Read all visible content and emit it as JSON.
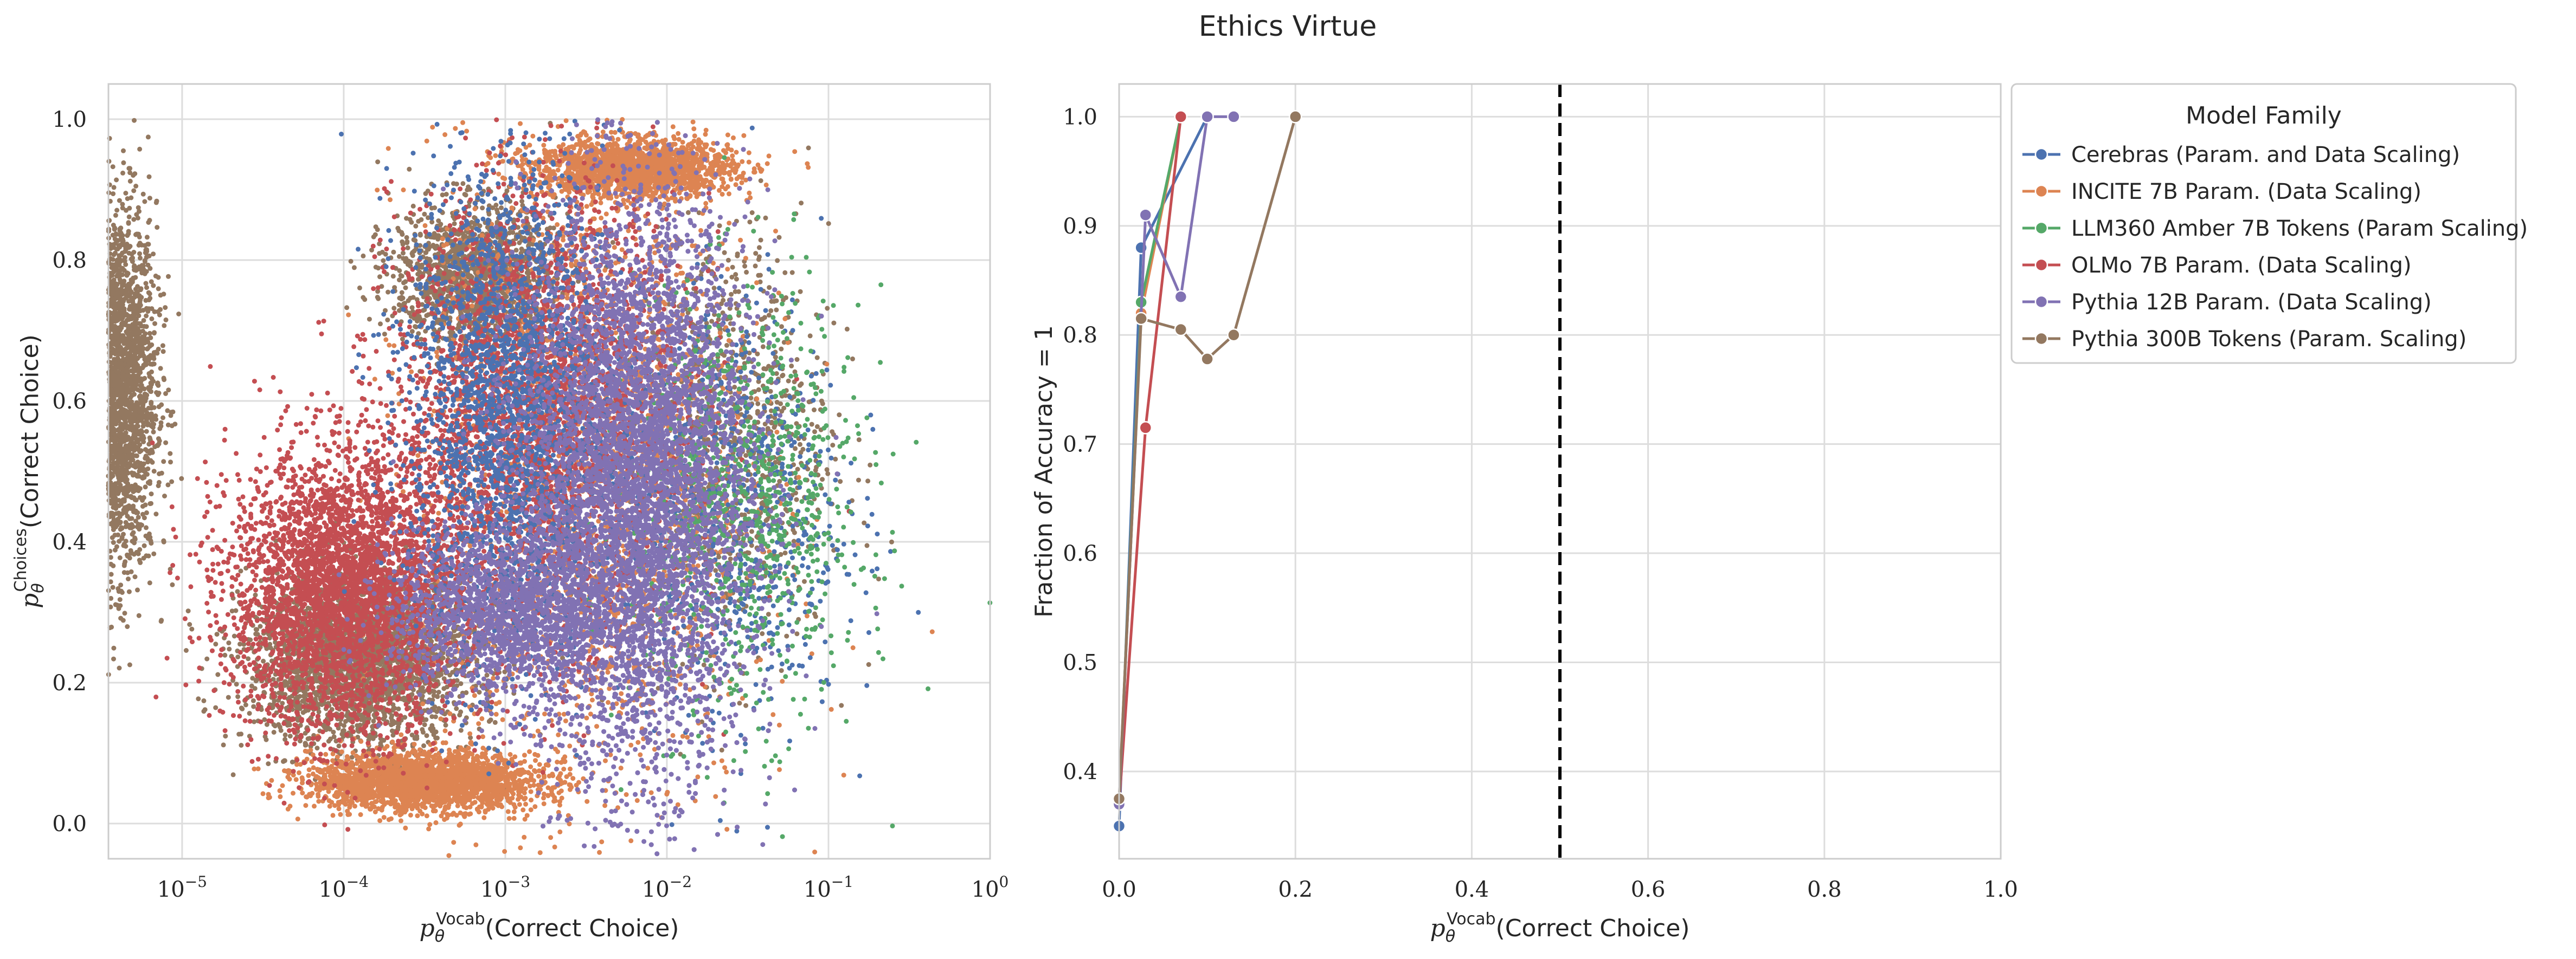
{
  "suptitle": "Ethics Virtue",
  "colors": {
    "Cerebras (Param. and Data Scaling)": "#4c72b0",
    "INCITE 7B Param. (Data Scaling)": "#dd8452",
    "LLM360 Amber 7B Tokens (Param Scaling)": "#55a868",
    "OLMo 7B Param. (Data Scaling)": "#c44e52",
    "Pythia 12B Param. (Data Scaling)": "#8172b3",
    "Pythia 300B Tokens (Param. Scaling)": "#937860"
  },
  "legend": {
    "title": "Model Family",
    "placement": "outside-right-top",
    "entries": [
      "Cerebras (Param. and Data Scaling)",
      "INCITE 7B Param. (Data Scaling)",
      "LLM360 Amber 7B Tokens (Param Scaling)",
      "OLMo 7B Param. (Data Scaling)",
      "Pythia 12B Param. (Data Scaling)",
      "Pythia 300B Tokens (Param. Scaling)"
    ]
  },
  "chart_data": [
    {
      "type": "scatter",
      "title": "",
      "xlabel": "p_θ^Vocab(Correct Choice)",
      "ylabel": "p_θ^Choices(Correct Choice)",
      "xscale": "log",
      "xlim": [
        3.5e-06,
        1.0
      ],
      "ylim": [
        -0.05,
        1.05
      ],
      "grid": true,
      "xticks": [
        1e-05,
        0.0001,
        0.001,
        0.01,
        0.1,
        1
      ],
      "xtick_labels": [
        [
          "10",
          "−5"
        ],
        [
          "10",
          "−4"
        ],
        [
          "10",
          "−3"
        ],
        [
          "10",
          "−2"
        ],
        [
          "10",
          "−1"
        ],
        [
          "10",
          "0"
        ]
      ],
      "yticks": [
        0.0,
        0.2,
        0.4,
        0.6,
        0.8,
        1.0
      ],
      "ytick_labels": [
        "0.0",
        "0.2",
        "0.4",
        "0.6",
        "0.8",
        "1.0"
      ],
      "series": [
        {
          "name": "Pythia 300B Tokens (Param. Scaling)",
          "approx_clusters": [
            {
              "x_log10_center": -5.4,
              "x_log10_sd": 0.12,
              "y_center": 0.62,
              "y_sd": 0.13,
              "n": 2600
            },
            {
              "x_log10_center": -3.9,
              "x_log10_sd": 0.35,
              "y_center": 0.23,
              "y_sd": 0.06,
              "n": 2600
            },
            {
              "x_log10_center": -3.2,
              "x_log10_sd": 0.25,
              "y_center": 0.78,
              "y_sd": 0.05,
              "n": 1400
            },
            {
              "x_log10_center": -1.6,
              "x_log10_sd": 0.3,
              "y_center": 0.55,
              "y_sd": 0.15,
              "n": 900
            }
          ]
        },
        {
          "name": "INCITE 7B Param. (Data Scaling)",
          "approx_clusters": [
            {
              "x_log10_center": -3.5,
              "x_log10_sd": 0.35,
              "y_center": 0.06,
              "y_sd": 0.02,
              "n": 2400
            },
            {
              "x_log10_center": -2.2,
              "x_log10_sd": 0.3,
              "y_center": 0.93,
              "y_sd": 0.02,
              "n": 1800
            },
            {
              "x_log10_center": -2.5,
              "x_log10_sd": 0.5,
              "y_center": 0.5,
              "y_sd": 0.25,
              "n": 2200
            }
          ]
        },
        {
          "name": "OLMo 7B Param. (Data Scaling)",
          "approx_clusters": [
            {
              "x_log10_center": -4.0,
              "x_log10_sd": 0.35,
              "y_center": 0.33,
              "y_sd": 0.1,
              "n": 3800
            },
            {
              "x_log10_center": -2.8,
              "x_log10_sd": 0.45,
              "y_center": 0.58,
              "y_sd": 0.15,
              "n": 3000
            }
          ]
        },
        {
          "name": "Cerebras (Param. and Data Scaling)",
          "approx_clusters": [
            {
              "x_log10_center": -3.0,
              "x_log10_sd": 0.3,
              "y_center": 0.6,
              "y_sd": 0.18,
              "n": 2200
            },
            {
              "x_log10_center": -1.6,
              "x_log10_sd": 0.35,
              "y_center": 0.45,
              "y_sd": 0.15,
              "n": 700
            }
          ]
        },
        {
          "name": "LLM360 Amber 7B Tokens (Param Scaling)",
          "approx_clusters": [
            {
              "x_log10_center": -1.5,
              "x_log10_sd": 0.35,
              "y_center": 0.45,
              "y_sd": 0.15,
              "n": 900
            }
          ]
        },
        {
          "name": "Pythia 12B Param. (Data Scaling)",
          "approx_clusters": [
            {
              "x_log10_center": -2.2,
              "x_log10_sd": 0.35,
              "y_center": 0.48,
              "y_sd": 0.2,
              "n": 9000
            },
            {
              "x_log10_center": -3.0,
              "x_log10_sd": 0.35,
              "y_center": 0.3,
              "y_sd": 0.06,
              "n": 1600
            }
          ]
        }
      ]
    },
    {
      "type": "line",
      "title": "",
      "xlabel": "p_θ^Vocab(Correct Choice)",
      "ylabel": "Fraction of Accuracy = 1",
      "xlim": [
        0.0,
        1.0
      ],
      "ylim": [
        0.32,
        1.03
      ],
      "grid": true,
      "xticks": [
        0.0,
        0.2,
        0.4,
        0.6,
        0.8,
        1.0
      ],
      "xtick_labels": [
        "0.0",
        "0.2",
        "0.4",
        "0.6",
        "0.8",
        "1.0"
      ],
      "yticks": [
        0.4,
        0.5,
        0.6,
        0.7,
        0.8,
        0.9,
        1.0
      ],
      "ytick_labels": [
        "0.4",
        "0.5",
        "0.6",
        "0.7",
        "0.8",
        "0.9",
        "1.0"
      ],
      "vline": {
        "x": 0.5,
        "style": "dashed",
        "color": "#000000"
      },
      "series": [
        {
          "name": "Cerebras (Param. and Data Scaling)",
          "x": [
            0.0,
            0.025,
            0.1
          ],
          "y": [
            0.35,
            0.88,
            1.0
          ]
        },
        {
          "name": "INCITE 7B Param. (Data Scaling)",
          "x": [
            0.0,
            0.025,
            0.07
          ],
          "y": [
            0.37,
            0.82,
            1.0
          ]
        },
        {
          "name": "LLM360 Amber 7B Tokens (Param Scaling)",
          "x": [
            0.0,
            0.025,
            0.07
          ],
          "y": [
            0.37,
            0.83,
            1.0
          ]
        },
        {
          "name": "OLMo 7B Param. (Data Scaling)",
          "x": [
            0.0,
            0.03,
            0.07
          ],
          "y": [
            0.37,
            0.715,
            1.0
          ]
        },
        {
          "name": "Pythia 12B Param. (Data Scaling)",
          "x": [
            0.0,
            0.03,
            0.07,
            0.1,
            0.13
          ],
          "y": [
            0.37,
            0.91,
            0.835,
            1.0,
            1.0
          ]
        },
        {
          "name": "Pythia 300B Tokens (Param. Scaling)",
          "x": [
            0.0,
            0.025,
            0.07,
            0.1,
            0.13,
            0.2
          ],
          "y": [
            0.375,
            0.815,
            0.805,
            0.778,
            0.8,
            1.0
          ]
        }
      ]
    }
  ]
}
